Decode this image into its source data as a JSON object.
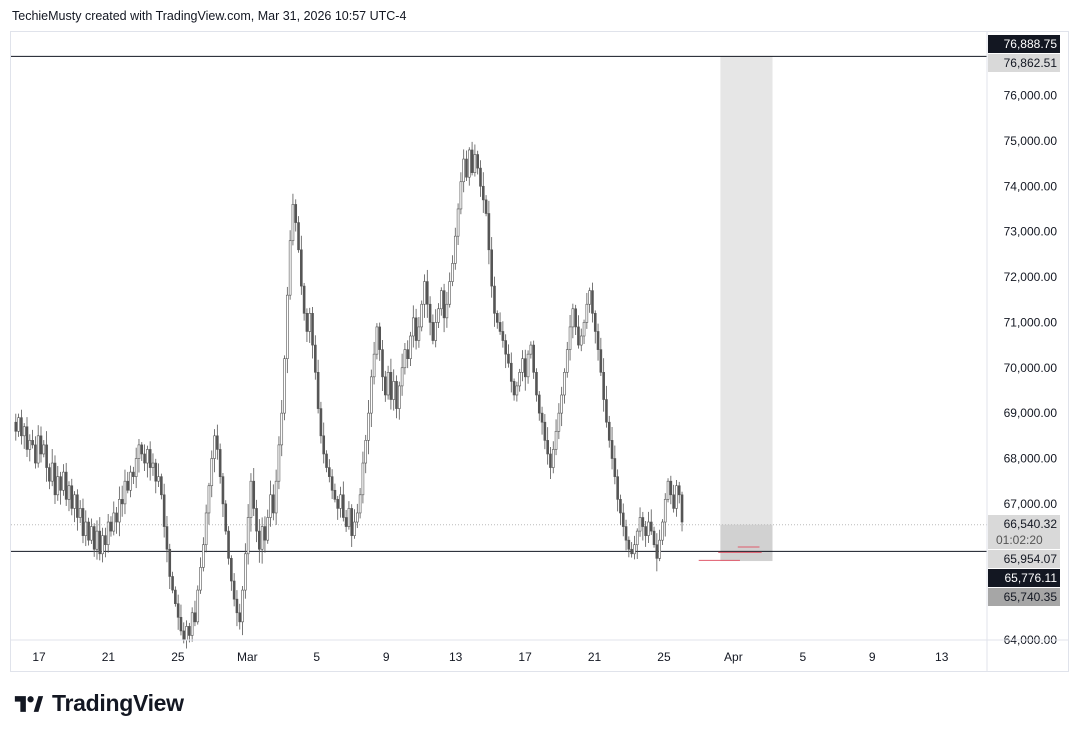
{
  "header": {
    "attribution": "TechieMusty created with TradingView.com, Mar 31, 2026 10:57 UTC-4"
  },
  "logo": {
    "text": "TradingView"
  },
  "chart_data": {
    "type": "candlestick",
    "title": "",
    "ylim": [
      64000,
      77400
    ],
    "grid": false,
    "y_ticks": [
      "76,000.00",
      "75,000.00",
      "74,000.00",
      "73,000.00",
      "72,000.00",
      "71,000.00",
      "70,000.00",
      "69,000.00",
      "68,000.00",
      "67,000.00",
      "64,000.00"
    ],
    "y_tick_values": [
      76000,
      75000,
      74000,
      73000,
      72000,
      71000,
      70000,
      69000,
      68000,
      67000,
      64000
    ],
    "x_ticks": [
      "17",
      "21",
      "25",
      "Mar",
      "5",
      "9",
      "13",
      "17",
      "21",
      "25",
      "Apr",
      "5",
      "9",
      "13"
    ],
    "x_tick_index": [
      0,
      32,
      64,
      96,
      128,
      160,
      192,
      224,
      256,
      288,
      320,
      352,
      384,
      416
    ],
    "horizontal_lines": [
      {
        "price": 76862.51,
        "label": "76,862.51",
        "color": "#131722"
      },
      {
        "price": 65954.07,
        "label": "65,954.07",
        "color": "#131722"
      }
    ],
    "price_labels": [
      {
        "price": 76888.75,
        "label": "76,888.75",
        "style": "dark"
      },
      {
        "price": 76862.51,
        "label": "76,862.51",
        "style": "light"
      },
      {
        "price": 66540.32,
        "label": "66,540.32",
        "style": "light",
        "sub": "01:02:20"
      },
      {
        "price": 65954.07,
        "label": "65,954.07",
        "style": "light"
      },
      {
        "price": 65776.11,
        "label": "65,776.11",
        "style": "dark"
      },
      {
        "price": 65740.35,
        "label": "65,740.35",
        "style": "gray"
      }
    ],
    "highlight_zone": {
      "from_index": 326,
      "to_index": 350,
      "top": 76862.51,
      "bottom": 65740.35
    },
    "candles_step": 2,
    "closes": [
      68800,
      68600,
      68900,
      68500,
      68700,
      68200,
      68400,
      68300,
      67900,
      68500,
      68100,
      68300,
      67800,
      67500,
      67900,
      67200,
      67600,
      67300,
      67700,
      67100,
      67400,
      66900,
      67200,
      66700,
      66900,
      66300,
      66600,
      66200,
      66500,
      66000,
      66400,
      65900,
      66300,
      66100,
      66600,
      66400,
      66800,
      66600,
      67100,
      67000,
      67500,
      67300,
      67700,
      67600,
      68000,
      68300,
      68100,
      67900,
      68200,
      67800,
      67900,
      67500,
      67600,
      67200,
      66500,
      66000,
      65400,
      65100,
      64800,
      64500,
      64200,
      64000,
      64300,
      64100,
      64600,
      64400,
      65100,
      65600,
      66100,
      66800,
      67400,
      68000,
      68500,
      68200,
      67600,
      67000,
      66400,
      65800,
      65300,
      64900,
      64600,
      64400,
      65100,
      65900,
      66700,
      67500,
      66900,
      66400,
      66000,
      66500,
      66200,
      66700,
      67200,
      66800,
      67500,
      68300,
      69000,
      70200,
      71600,
      72800,
      73600,
      73200,
      72600,
      71800,
      71200,
      70800,
      71200,
      70500,
      69900,
      69100,
      68500,
      68100,
      67800,
      67600,
      67300,
      67100,
      66900,
      67200,
      66700,
      66500,
      66900,
      66300,
      66600,
      66800,
      67200,
      67900,
      68400,
      69000,
      69800,
      70300,
      70900,
      70400,
      69800,
      69400,
      69900,
      69300,
      69700,
      69100,
      69600,
      70000,
      70400,
      70200,
      70700,
      71100,
      70600,
      70900,
      71400,
      71900,
      71400,
      71000,
      70600,
      71000,
      71300,
      71700,
      71100,
      71400,
      71900,
      72300,
      72900,
      73500,
      74100,
      74600,
      74200,
      74800,
      74300,
      74700,
      74400,
      74000,
      73700,
      73400,
      72600,
      71800,
      71200,
      71000,
      70800,
      70600,
      70300,
      70100,
      69700,
      69400,
      69600,
      69900,
      70200,
      69800,
      70300,
      70500,
      69900,
      69400,
      69000,
      68800,
      68400,
      68100,
      67800,
      68200,
      68600,
      69000,
      69400,
      69900,
      70400,
      70900,
      71300,
      70900,
      70500,
      70700,
      71000,
      71400,
      71700,
      71200,
      70800,
      70400,
      69900,
      69300,
      68800,
      68400,
      68000,
      67600,
      67100,
      66800,
      66500,
      66200,
      66000,
      65900,
      66100,
      66400,
      66700,
      66500,
      66300,
      66600,
      66400,
      66100,
      65800,
      66200,
      66600,
      67100,
      67500,
      67200,
      66900,
      67400,
      67200,
      66600
    ],
    "current_price": 66540.32,
    "countdown": "01:02:20"
  }
}
